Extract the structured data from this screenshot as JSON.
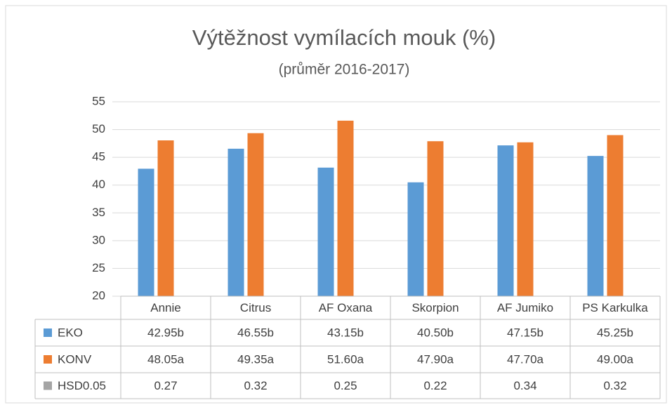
{
  "chart_data": {
    "type": "bar",
    "title": "Výtěžnost vymílacích mouk (%)",
    "subtitle": "(průměr 2016-2017)",
    "categories": [
      "Annie",
      "Citrus",
      "AF Oxana",
      "Skorpion",
      "AF Jumiko",
      "PS Karkulka"
    ],
    "series": [
      {
        "name": "EKO",
        "color": "#5b9bd5",
        "values": [
          42.95,
          46.55,
          43.15,
          40.5,
          47.15,
          45.25
        ],
        "value_labels": [
          "42.95b",
          "46.55b",
          "43.15b",
          "40.50b",
          "47.15b",
          "45.25b"
        ]
      },
      {
        "name": "KONV",
        "color": "#ed7d31",
        "values": [
          48.05,
          49.35,
          51.6,
          47.9,
          47.7,
          49.0
        ],
        "value_labels": [
          "48.05a",
          "49.35a",
          "51.60a",
          "47.90a",
          "47.70a",
          "49.00a"
        ]
      },
      {
        "name": "HSD0.05",
        "color": "#a5a5a5",
        "values": [
          0.27,
          0.32,
          0.25,
          0.22,
          0.34,
          0.32
        ]
      }
    ],
    "ylim": [
      20,
      55
    ],
    "yticks": [
      20,
      25,
      30,
      35,
      40,
      45,
      50,
      55
    ],
    "grid": true,
    "data_table": true
  }
}
